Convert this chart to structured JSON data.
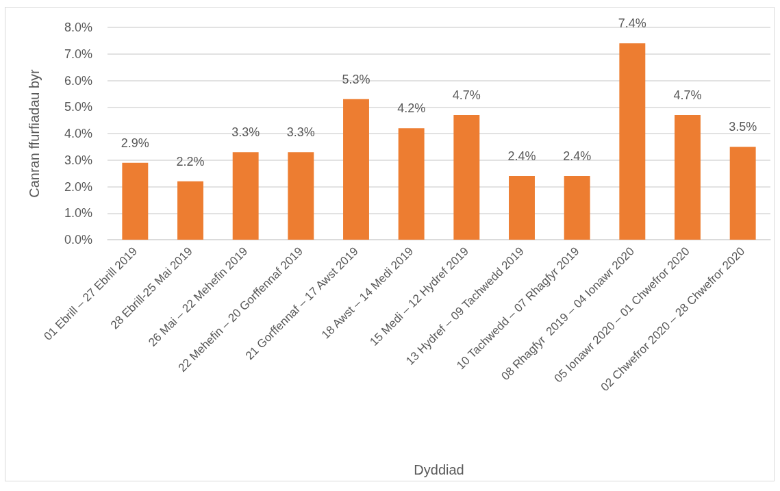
{
  "chart_data": {
    "type": "bar",
    "xlabel": "Dyddiad",
    "ylabel": "Canran ffurfiadau byr",
    "categories": [
      "01 Ebrill – 27 Ebrill 2019",
      "28 Ebrill-25 Mai 2019",
      "26 Mai – 22 Mehefin 2019",
      "22 Mehefin – 20 Gorffennaf 2019",
      "21 Gorffennaf – 17 Awst 2019",
      "18 Awst – 14 Medi 2019",
      "15 Medi – 12 Hydref 2019",
      "13 Hydref – 09 Tachwedd 2019",
      "10 Tachwedd – 07 Rhagfyr 2019",
      "08 Rhagfyr  2019 – 04 Ionawr 2020",
      "05 Ionawr 2020 – 01 Chwefror 2020",
      "02 Chwefror 2020 – 28 Chwefror 2020"
    ],
    "values": [
      2.9,
      2.2,
      3.3,
      3.3,
      5.3,
      4.2,
      4.7,
      2.4,
      2.4,
      7.4,
      4.7,
      3.5
    ],
    "value_labels": [
      "2.9%",
      "2.2%",
      "3.3%",
      "3.3%",
      "5.3%",
      "4.2%",
      "4.7%",
      "2.4%",
      "2.4%",
      "7.4%",
      "4.7%",
      "3.5%"
    ],
    "color": "#ed7d31",
    "ylim": [
      0,
      8
    ],
    "yticks": [
      {
        "value": 0,
        "label": "0.0%"
      },
      {
        "value": 1,
        "label": "1.0%"
      },
      {
        "value": 2,
        "label": "2.0%"
      },
      {
        "value": 3,
        "label": "3.0%"
      },
      {
        "value": 4,
        "label": "4.0%"
      },
      {
        "value": 5,
        "label": "5.0%"
      },
      {
        "value": 6,
        "label": "6.0%"
      },
      {
        "value": 7,
        "label": "7.0%"
      },
      {
        "value": 8,
        "label": "8.0%"
      }
    ],
    "grid": "y"
  }
}
